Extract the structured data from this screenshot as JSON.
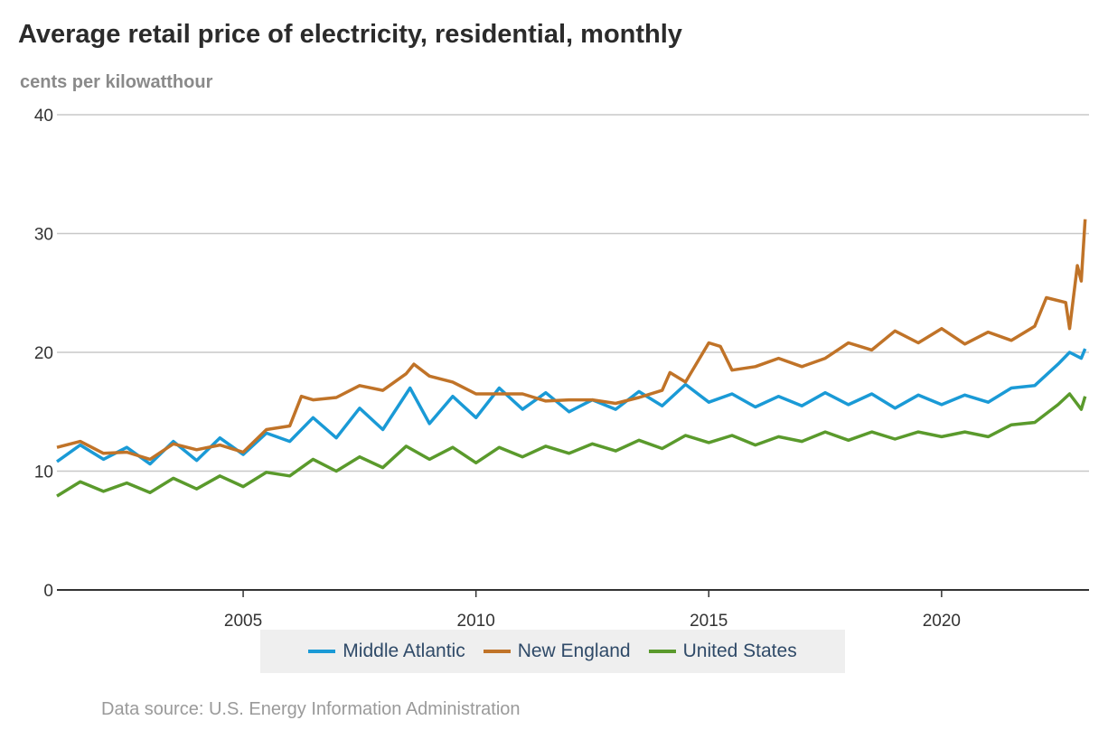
{
  "chart_data": {
    "type": "line",
    "title": "Average retail price of electricity, residential, monthly",
    "ylabel": "cents per kilowatthour",
    "ylim": [
      0,
      40
    ],
    "yticks": [
      0,
      10,
      20,
      30,
      40
    ],
    "xlim": [
      "2001-01",
      "2023-02"
    ],
    "xticks": [
      "2005",
      "2010",
      "2015",
      "2020"
    ],
    "grid": "horizontal",
    "legend": "bottom",
    "source": "Data source: U.S. Energy Information Administration",
    "series": [
      {
        "name": "Middle Atlantic",
        "color": "#1a9ad6",
        "points": [
          [
            "2001-01",
            10.8
          ],
          [
            "2001-07",
            12.2
          ],
          [
            "2002-01",
            11.0
          ],
          [
            "2002-07",
            12.0
          ],
          [
            "2003-01",
            10.6
          ],
          [
            "2003-07",
            12.5
          ],
          [
            "2004-01",
            10.9
          ],
          [
            "2004-07",
            12.8
          ],
          [
            "2005-01",
            11.4
          ],
          [
            "2005-07",
            13.2
          ],
          [
            "2006-01",
            12.5
          ],
          [
            "2006-07",
            14.5
          ],
          [
            "2007-01",
            12.8
          ],
          [
            "2007-07",
            15.3
          ],
          [
            "2008-01",
            13.5
          ],
          [
            "2008-08",
            17.0
          ],
          [
            "2009-01",
            14.0
          ],
          [
            "2009-07",
            16.3
          ],
          [
            "2010-01",
            14.5
          ],
          [
            "2010-07",
            17.0
          ],
          [
            "2011-01",
            15.2
          ],
          [
            "2011-07",
            16.6
          ],
          [
            "2012-01",
            15.0
          ],
          [
            "2012-07",
            16.0
          ],
          [
            "2013-01",
            15.2
          ],
          [
            "2013-07",
            16.7
          ],
          [
            "2014-01",
            15.5
          ],
          [
            "2014-07",
            17.3
          ],
          [
            "2015-01",
            15.8
          ],
          [
            "2015-07",
            16.5
          ],
          [
            "2016-01",
            15.4
          ],
          [
            "2016-07",
            16.3
          ],
          [
            "2017-01",
            15.5
          ],
          [
            "2017-07",
            16.6
          ],
          [
            "2018-01",
            15.6
          ],
          [
            "2018-07",
            16.5
          ],
          [
            "2019-01",
            15.3
          ],
          [
            "2019-07",
            16.4
          ],
          [
            "2020-01",
            15.6
          ],
          [
            "2020-07",
            16.4
          ],
          [
            "2021-01",
            15.8
          ],
          [
            "2021-07",
            17.0
          ],
          [
            "2022-01",
            17.2
          ],
          [
            "2022-07",
            19.0
          ],
          [
            "2022-10",
            20.0
          ],
          [
            "2023-01",
            19.5
          ],
          [
            "2023-02",
            20.3
          ]
        ]
      },
      {
        "name": "New England",
        "color": "#c07328",
        "points": [
          [
            "2001-01",
            12.0
          ],
          [
            "2001-07",
            12.5
          ],
          [
            "2002-01",
            11.5
          ],
          [
            "2002-07",
            11.6
          ],
          [
            "2003-01",
            11.0
          ],
          [
            "2003-07",
            12.3
          ],
          [
            "2004-01",
            11.8
          ],
          [
            "2004-07",
            12.2
          ],
          [
            "2005-01",
            11.6
          ],
          [
            "2005-07",
            13.5
          ],
          [
            "2006-01",
            13.8
          ],
          [
            "2006-04",
            16.3
          ],
          [
            "2006-07",
            16.0
          ],
          [
            "2007-01",
            16.2
          ],
          [
            "2007-07",
            17.2
          ],
          [
            "2008-01",
            16.8
          ],
          [
            "2008-07",
            18.2
          ],
          [
            "2008-09",
            19.0
          ],
          [
            "2009-01",
            18.0
          ],
          [
            "2009-07",
            17.5
          ],
          [
            "2010-01",
            16.5
          ],
          [
            "2010-07",
            16.5
          ],
          [
            "2011-01",
            16.5
          ],
          [
            "2011-07",
            15.9
          ],
          [
            "2012-01",
            16.0
          ],
          [
            "2012-07",
            16.0
          ],
          [
            "2013-01",
            15.7
          ],
          [
            "2013-07",
            16.2
          ],
          [
            "2014-01",
            16.8
          ],
          [
            "2014-03",
            18.3
          ],
          [
            "2014-07",
            17.5
          ],
          [
            "2015-01",
            20.8
          ],
          [
            "2015-04",
            20.5
          ],
          [
            "2015-07",
            18.5
          ],
          [
            "2016-01",
            18.8
          ],
          [
            "2016-07",
            19.5
          ],
          [
            "2017-01",
            18.8
          ],
          [
            "2017-07",
            19.5
          ],
          [
            "2018-01",
            20.8
          ],
          [
            "2018-07",
            20.2
          ],
          [
            "2019-01",
            21.8
          ],
          [
            "2019-07",
            20.8
          ],
          [
            "2020-01",
            22.0
          ],
          [
            "2020-07",
            20.7
          ],
          [
            "2021-01",
            21.7
          ],
          [
            "2021-07",
            21.0
          ],
          [
            "2022-01",
            22.2
          ],
          [
            "2022-04",
            24.6
          ],
          [
            "2022-09",
            24.2
          ],
          [
            "2022-10",
            22.0
          ],
          [
            "2022-12",
            27.3
          ],
          [
            "2023-01",
            26.0
          ],
          [
            "2023-02",
            31.2
          ]
        ]
      },
      {
        "name": "United States",
        "color": "#5a9a2c",
        "points": [
          [
            "2001-01",
            7.9
          ],
          [
            "2001-07",
            9.1
          ],
          [
            "2002-01",
            8.3
          ],
          [
            "2002-07",
            9.0
          ],
          [
            "2003-01",
            8.2
          ],
          [
            "2003-07",
            9.4
          ],
          [
            "2004-01",
            8.5
          ],
          [
            "2004-07",
            9.6
          ],
          [
            "2005-01",
            8.7
          ],
          [
            "2005-07",
            9.9
          ],
          [
            "2006-01",
            9.6
          ],
          [
            "2006-07",
            11.0
          ],
          [
            "2007-01",
            10.0
          ],
          [
            "2007-07",
            11.2
          ],
          [
            "2008-01",
            10.3
          ],
          [
            "2008-07",
            12.1
          ],
          [
            "2009-01",
            11.0
          ],
          [
            "2009-07",
            12.0
          ],
          [
            "2010-01",
            10.7
          ],
          [
            "2010-07",
            12.0
          ],
          [
            "2011-01",
            11.2
          ],
          [
            "2011-07",
            12.1
          ],
          [
            "2012-01",
            11.5
          ],
          [
            "2012-07",
            12.3
          ],
          [
            "2013-01",
            11.7
          ],
          [
            "2013-07",
            12.6
          ],
          [
            "2014-01",
            11.9
          ],
          [
            "2014-07",
            13.0
          ],
          [
            "2015-01",
            12.4
          ],
          [
            "2015-07",
            13.0
          ],
          [
            "2016-01",
            12.2
          ],
          [
            "2016-07",
            12.9
          ],
          [
            "2017-01",
            12.5
          ],
          [
            "2017-07",
            13.3
          ],
          [
            "2018-01",
            12.6
          ],
          [
            "2018-07",
            13.3
          ],
          [
            "2019-01",
            12.7
          ],
          [
            "2019-07",
            13.3
          ],
          [
            "2020-01",
            12.9
          ],
          [
            "2020-07",
            13.3
          ],
          [
            "2021-01",
            12.9
          ],
          [
            "2021-07",
            13.9
          ],
          [
            "2022-01",
            14.1
          ],
          [
            "2022-07",
            15.6
          ],
          [
            "2022-10",
            16.5
          ],
          [
            "2023-01",
            15.2
          ],
          [
            "2023-02",
            16.3
          ]
        ]
      }
    ]
  }
}
